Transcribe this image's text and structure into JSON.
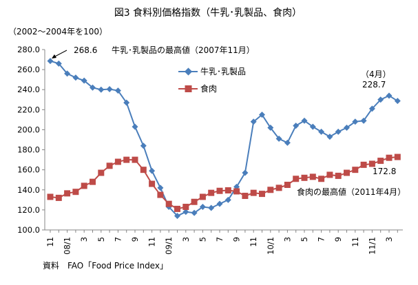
{
  "chart_data": {
    "type": "line",
    "title": "図3  食料別価格指数（牛乳･乳製品、食肉）",
    "unit_label": "（2002～2004年を100）",
    "source": "資料　FAO「Food Price Index」",
    "ylim": [
      100,
      280
    ],
    "y_ticks": [
      "100.0",
      "120.0",
      "140.0",
      "160.0",
      "180.0",
      "200.0",
      "220.0",
      "240.0",
      "260.0",
      "280.0"
    ],
    "x_tick_labels": [
      {
        "index": 0,
        "label": "11"
      },
      {
        "index": 2,
        "label": "08/1"
      },
      {
        "index": 4,
        "label": "3"
      },
      {
        "index": 6,
        "label": "5"
      },
      {
        "index": 8,
        "label": "7"
      },
      {
        "index": 10,
        "label": "9"
      },
      {
        "index": 12,
        "label": "11"
      },
      {
        "index": 14,
        "label": "09/1"
      },
      {
        "index": 16,
        "label": "3"
      },
      {
        "index": 18,
        "label": "5"
      },
      {
        "index": 20,
        "label": "7"
      },
      {
        "index": 22,
        "label": "9"
      },
      {
        "index": 24,
        "label": "11"
      },
      {
        "index": 26,
        "label": "10/1"
      },
      {
        "index": 28,
        "label": "3"
      },
      {
        "index": 30,
        "label": "5"
      },
      {
        "index": 32,
        "label": "7"
      },
      {
        "index": 34,
        "label": "9"
      },
      {
        "index": 36,
        "label": "11"
      },
      {
        "index": 38,
        "label": "11/1"
      },
      {
        "index": 40,
        "label": "3"
      }
    ],
    "series": [
      {
        "name": "牛乳･乳製品",
        "color": "#4a7ebb",
        "marker": "diamond",
        "values": [
          268.6,
          266,
          256,
          252,
          249,
          242,
          240,
          240.5,
          239,
          227,
          203,
          184,
          159,
          142,
          123,
          114,
          118,
          117,
          123,
          122,
          126,
          130,
          143,
          157,
          208,
          215,
          202,
          191,
          187,
          204,
          209,
          203,
          198,
          193,
          198,
          202,
          208,
          209,
          221,
          230,
          234,
          228.7
        ]
      },
      {
        "name": "食肉",
        "color": "#be4b48",
        "marker": "square",
        "values": [
          133,
          132,
          136.5,
          138,
          144,
          148,
          157,
          164,
          168,
          170,
          170,
          160,
          146,
          135,
          126,
          121,
          123,
          128,
          133,
          137,
          139,
          139.5,
          138.5,
          134,
          137,
          136,
          140,
          142,
          145,
          151,
          152,
          153,
          151,
          155,
          154,
          157,
          160,
          165,
          166,
          169,
          172,
          172.8
        ]
      }
    ],
    "annotations": {
      "dairy_peak_value": "268.6",
      "dairy_peak_label": "牛乳･乳製品の最高値（2007年11月）",
      "dairy_last_month": "（4月）",
      "dairy_last_value": "228.7",
      "meat_last_value": "172.8",
      "meat_peak_label": "食肉の最高値（2011年4月）"
    },
    "legend_placement": "top-center",
    "grid": false
  }
}
